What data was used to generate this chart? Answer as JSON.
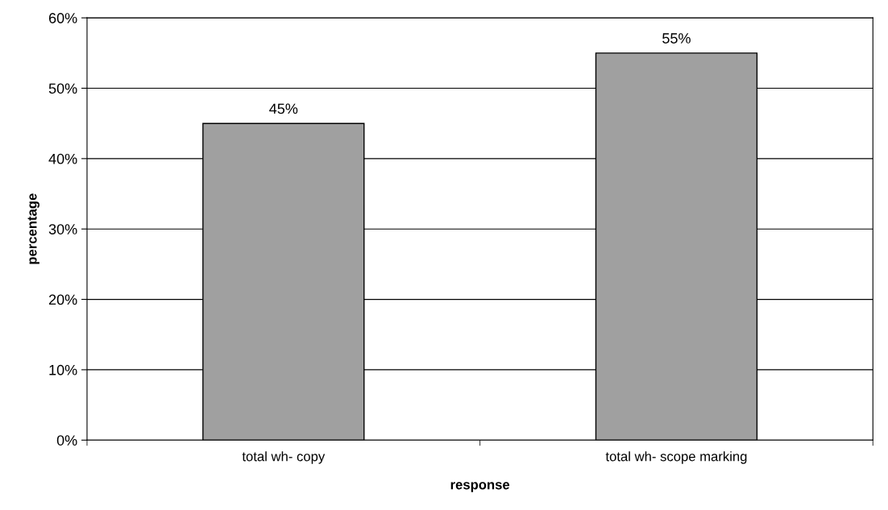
{
  "chart_data": {
    "type": "bar",
    "xlabel": "response",
    "ylabel": "percentage",
    "categories": [
      "total wh- copy",
      "total wh- scope marking"
    ],
    "values": [
      45,
      55
    ],
    "color": "#a0a0a0",
    "value_labels": [
      "45%",
      "55%"
    ],
    "ylim": [
      0,
      60
    ],
    "yticks": [
      {
        "value": 0,
        "label": "0%"
      },
      {
        "value": 10,
        "label": "10%"
      },
      {
        "value": 20,
        "label": "20%"
      },
      {
        "value": 30,
        "label": "30%"
      },
      {
        "value": 40,
        "label": "40%"
      },
      {
        "value": 50,
        "label": "50%"
      },
      {
        "value": 60,
        "label": "60%"
      }
    ],
    "grid": "y"
  }
}
